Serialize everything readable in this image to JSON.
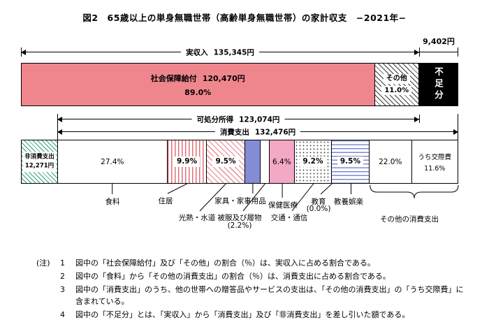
{
  "title": "図2　65歳以上の単身無職世帯（高齢単身無職世帯）の家計収支　−2021年−",
  "chart_data": {
    "type": "bar",
    "subtype": "stacked-horizontal-household-budget",
    "year": 2021,
    "currency_unit": "円",
    "actual_income": {
      "label": "実収入",
      "amount": "135,345円",
      "value": 135345
    },
    "social_security": {
      "label": "社会保障給付",
      "amount": "120,470円",
      "value": 120470,
      "pct_label": "89.0%",
      "pct": 89.0
    },
    "income_other": {
      "label": "その他",
      "pct_label": "11.0%",
      "pct": 11.0
    },
    "shortfall": {
      "label": "不足分",
      "amount": "9,402円",
      "value": 9402
    },
    "disposable_income": {
      "label": "可処分所得",
      "amount": "123,074円",
      "value": 123074
    },
    "consumption_total": {
      "label": "消費支出",
      "amount": "132,476円",
      "value": 132476
    },
    "non_consumption": {
      "label": "非消費支出",
      "amount": "12,271円",
      "value": 12271
    },
    "consumption_segments": [
      {
        "name": "食料",
        "pct_label": "27.4%",
        "pct": 27.4,
        "width_pct": 27.4
      },
      {
        "name": "住居",
        "pct_label": "9.9%",
        "pct": 9.9,
        "width_pct": 9.9
      },
      {
        "name": "光熱・水道",
        "pct_label": "9.5%",
        "pct": 9.5,
        "width_pct": 9.5
      },
      {
        "name": "家具・家事用品",
        "pct_label": "",
        "width_pct": 3.9
      },
      {
        "name": "被服及び履物",
        "pct_label": "(2.2%)",
        "pct": 2.2,
        "width_pct": 2.2
      },
      {
        "name": "保健医療",
        "pct_label": "6.4%",
        "pct": 6.4,
        "width_pct": 6.4
      },
      {
        "name": "交通・通信",
        "pct_label": "9.2%",
        "pct": 9.2,
        "width_pct": 9.2
      },
      {
        "name": "教育",
        "pct_label": "(0.0%)",
        "pct": 0.0,
        "width_pct": 0
      },
      {
        "name": "教養娯楽",
        "pct_label": "9.5%",
        "pct": 9.5,
        "width_pct": 9.5
      },
      {
        "name": "その他の消費支出",
        "pct_label": "22.0%",
        "pct": 22.0,
        "width_pct": 22.0,
        "sub": {
          "name": "うち交際費",
          "pct_label": "11.6%",
          "pct": 11.6,
          "width_pct_of_segment": 52.7
        }
      }
    ],
    "colors": {
      "social_security_fill": "#f0868d",
      "shortfall_fill": "#000000",
      "non_consumption_hatch": "#2fa277",
      "housing_stripe": "#e2707a",
      "utilities_stripe": "#eba0a6",
      "furniture_fill": "#858cd6",
      "medical_fill": "#f3a8c6",
      "recreation_stripe": "#7f8ad4"
    }
  },
  "notes": {
    "heading": "(注)",
    "items": [
      {
        "num": "1",
        "text": "図中の「社会保障給付」及び「その他」の割合（％）は、実収入に占める割合である。"
      },
      {
        "num": "2",
        "text": "図中の「食料」から「その他の消費支出」の割合（％）は、消費支出に占める割合である。"
      },
      {
        "num": "3",
        "text": "図中の「消費支出」のうち、他の世帯への贈答品やサービスの支出は、「その他の消費支出」の「うち交際費」に含まれている。"
      },
      {
        "num": "4",
        "text": "図中の「不足分」とは、「実収入」から「消費支出」及び「非消費支出」を差し引いた額である。"
      }
    ]
  }
}
